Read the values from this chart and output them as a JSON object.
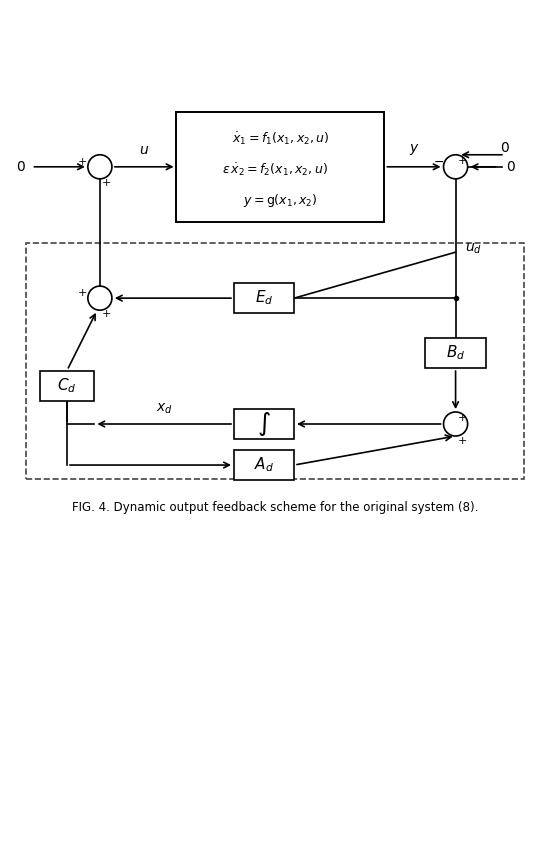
{
  "title": "FIG. 4. Dynamic output feedback scheme for the original system (8).",
  "bg_color": "#ffffff",
  "line_color": "#000000",
  "box_color": "#ffffff",
  "dashed_box_color": "#555555",
  "text_color": "#000000"
}
